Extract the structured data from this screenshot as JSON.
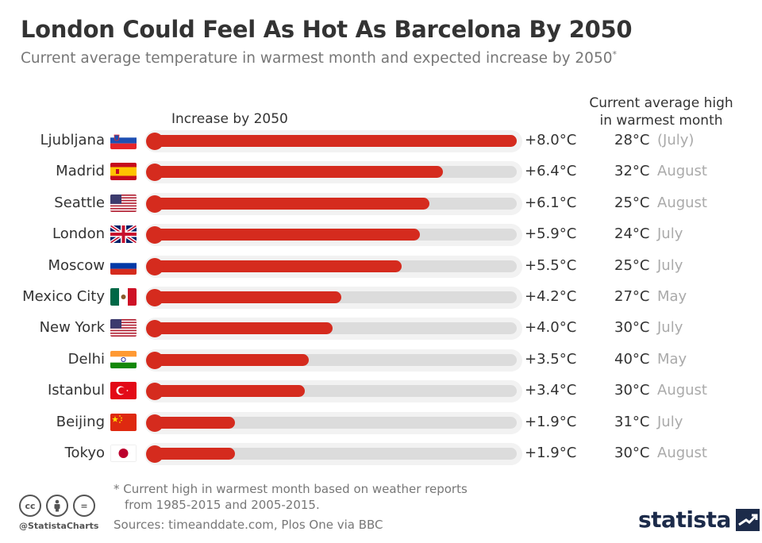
{
  "header": {
    "title": "London Could Feel As Hot As Barcelona By 2050",
    "subtitle": "Current average temperature in warmest month and expected increase by 2050",
    "subtitle_mark": "*"
  },
  "columns": {
    "increase_label": "Increase by 2050",
    "current_high_label_line1": "Current average high",
    "current_high_label_line2": "in warmest month"
  },
  "chart_data": {
    "type": "bar",
    "title": "London Could Feel As Hot As Barcelona By 2050",
    "xlabel": "Increase by 2050",
    "ylabel": "",
    "xlim": [
      0,
      8.0
    ],
    "categories": [
      "Ljubljana",
      "Madrid",
      "Seattle",
      "London",
      "Moscow",
      "Mexico City",
      "New York",
      "Delhi",
      "Istanbul",
      "Beijing",
      "Tokyo"
    ],
    "values": [
      8.0,
      6.4,
      6.1,
      5.9,
      5.5,
      4.2,
      4.0,
      3.5,
      3.4,
      1.9,
      1.9
    ],
    "value_labels": [
      "+8.0°C",
      "+6.4°C",
      "+6.1°C",
      "+5.9°C",
      "+5.5°C",
      "+4.2°C",
      "+4.0°C",
      "+3.5°C",
      "+3.4°C",
      "+1.9°C",
      "+1.9°C"
    ],
    "current_high": [
      "28°C",
      "32°C",
      "25°C",
      "24°C",
      "25°C",
      "27°C",
      "30°C",
      "40°C",
      "30°C",
      "31°C",
      "30°C"
    ],
    "warmest_month": [
      "(July)",
      "August",
      "August",
      "July",
      "July",
      "May",
      "July",
      "May",
      "August",
      "July",
      "August"
    ],
    "flags": [
      "flag-slovenia",
      "flag-spain",
      "flag-usa",
      "flag-uk",
      "flag-russia",
      "flag-mexico",
      "flag-usa",
      "flag-india",
      "flag-turkey",
      "flag-china",
      "flag-japan"
    ],
    "bar_color": "#d52b1e",
    "track_color": "#dcdcdc"
  },
  "footer": {
    "footnote_line1": "* Current high in warmest month based on weather reports",
    "footnote_line2": "from 1985-2015 and 2005-2015.",
    "sources": "Sources: timeanddate.com, Plos One via BBC",
    "handle": "@StatistaCharts",
    "logo": "statista",
    "cc_icons": [
      "cc",
      "by",
      "="
    ]
  }
}
